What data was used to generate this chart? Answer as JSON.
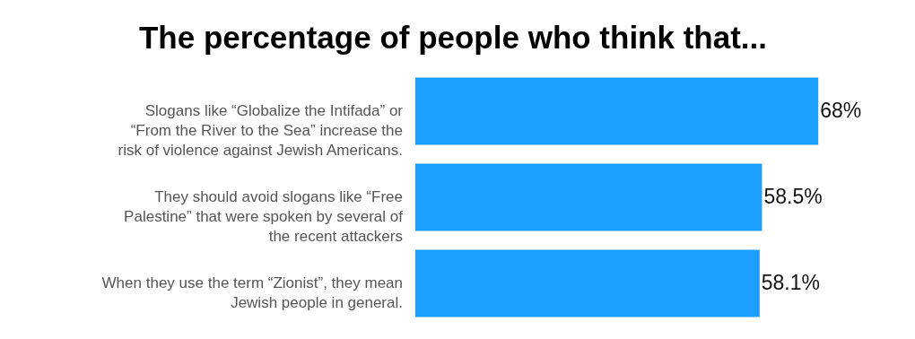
{
  "chart_data": {
    "type": "bar",
    "orientation": "horizontal",
    "title": "The percentage of people who think that...",
    "categories": [
      "Slogans like “Globalize the Intifada” or “From the River to the Sea” increase the risk of violence against Jewish Americans.",
      "They should avoid slogans like “Free Palestine” that were spoken by several of the recent attackers",
      "When they use the term “Zionist”, they mean Jewish people in general."
    ],
    "values": [
      68,
      58.5,
      58.1
    ],
    "value_labels": [
      "68%",
      "58.5%",
      "58.1%"
    ],
    "color": "#1a9fff"
  }
}
